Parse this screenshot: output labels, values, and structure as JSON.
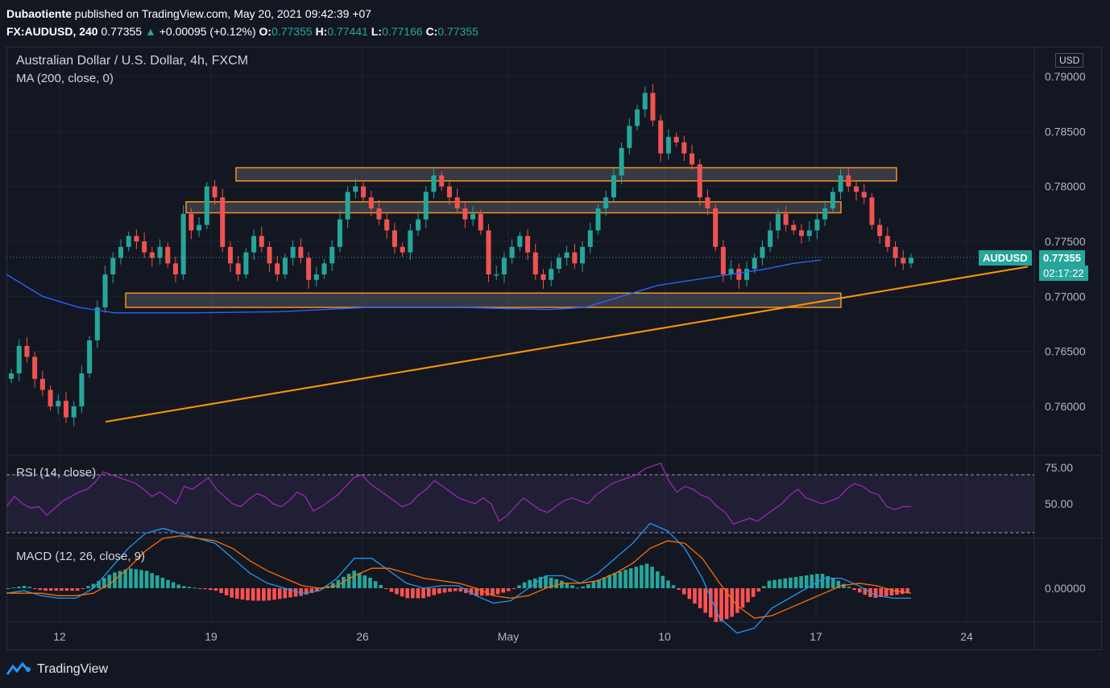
{
  "header": {
    "author": "Dubaotiente",
    "published": "published on TradingView.com, May 20, 2021 09:42:39 +07",
    "symbol_line": "FX:AUDUSD, 240",
    "last": "0.77355",
    "change": "+0.00095 (+0.12%)",
    "o_label": "O:",
    "o": "0.77355",
    "h_label": "H:",
    "h": "0.77441",
    "l_label": "L:",
    "l": "0.77166",
    "c_label": "C:",
    "c": "0.77355"
  },
  "legend": {
    "title": "Australian Dollar / U.S. Dollar, 4h, FXCM",
    "ma": "MA (200, close, 0)",
    "rsi": "RSI (14, close)",
    "macd": "MACD (12, 26, close, 9)"
  },
  "price_axis": {
    "currency": "USD",
    "labels": [
      "0.79000",
      "0.78500",
      "0.78000",
      "0.77500",
      "0.77000",
      "0.76500",
      "0.76000"
    ],
    "ticker_tag": "AUDUSD",
    "last_price": "0.77355",
    "countdown": "02:17:22"
  },
  "rsi_axis": {
    "labels": [
      "75.00",
      "50.00"
    ]
  },
  "macd_axis": {
    "labels": [
      "0.00000"
    ]
  },
  "time_axis": {
    "labels": [
      "12",
      "19",
      "26",
      "May",
      "10",
      "17",
      "24"
    ]
  },
  "footer": {
    "brand": "TradingView"
  },
  "colors": {
    "bg": "#131722",
    "up": "#26a69a",
    "down": "#ef5350",
    "ma": "#2962ff",
    "zone": "#f7931a",
    "trend": "#ff9800",
    "rsi": "#9c27b0",
    "macd": "#2196f3",
    "signal": "#ff6d00"
  },
  "chart_data": {
    "type": "candlestick",
    "title": "Australian Dollar / U.S. Dollar, 4h, FXCM",
    "ylim": [
      0.756,
      0.792
    ],
    "x_ticks": [
      "12",
      "19",
      "26",
      "May",
      "10",
      "17",
      "24"
    ],
    "close_path": [
      0.763,
      0.7655,
      0.7645,
      0.7625,
      0.7615,
      0.76,
      0.7605,
      0.759,
      0.76,
      0.763,
      0.766,
      0.769,
      0.772,
      0.7735,
      0.7745,
      0.7755,
      0.775,
      0.774,
      0.7735,
      0.7745,
      0.773,
      0.772,
      0.7775,
      0.776,
      0.7765,
      0.78,
      0.779,
      0.7745,
      0.773,
      0.772,
      0.774,
      0.7755,
      0.7745,
      0.773,
      0.772,
      0.7735,
      0.7745,
      0.7735,
      0.7715,
      0.772,
      0.773,
      0.7745,
      0.777,
      0.7795,
      0.78,
      0.779,
      0.778,
      0.777,
      0.776,
      0.7745,
      0.774,
      0.776,
      0.777,
      0.7795,
      0.781,
      0.78,
      0.779,
      0.778,
      0.777,
      0.7775,
      0.776,
      0.772,
      0.772,
      0.7735,
      0.7745,
      0.7755,
      0.774,
      0.772,
      0.7715,
      0.7725,
      0.7735,
      0.774,
      0.773,
      0.7745,
      0.776,
      0.778,
      0.779,
      0.781,
      0.7835,
      0.7855,
      0.787,
      0.7885,
      0.786,
      0.783,
      0.7845,
      0.784,
      0.783,
      0.782,
      0.779,
      0.778,
      0.7745,
      0.772,
      0.7725,
      0.7715,
      0.7725,
      0.7735,
      0.7745,
      0.776,
      0.7775,
      0.7765,
      0.776,
      0.7755,
      0.776,
      0.777,
      0.778,
      0.7795,
      0.781,
      0.78,
      0.7795,
      0.779,
      0.7765,
      0.7755,
      0.7745,
      0.7735,
      0.773,
      0.7735
    ],
    "ma200": [
      [
        0.0,
        0.772
      ],
      [
        0.04,
        0.77
      ],
      [
        0.08,
        0.769
      ],
      [
        0.12,
        0.7685
      ],
      [
        0.2,
        0.7685
      ],
      [
        0.3,
        0.7686
      ],
      [
        0.4,
        0.769
      ],
      [
        0.5,
        0.769
      ],
      [
        0.6,
        0.7688
      ],
      [
        0.64,
        0.769
      ],
      [
        0.68,
        0.77
      ],
      [
        0.72,
        0.771
      ],
      [
        0.76,
        0.7715
      ],
      [
        0.8,
        0.772
      ],
      [
        0.84,
        0.7725
      ],
      [
        0.87,
        0.773
      ],
      [
        0.9,
        0.7733
      ]
    ],
    "support_resistance_zones": [
      [
        0.7805,
        0.7817
      ],
      [
        0.7776,
        0.7786
      ],
      [
        0.769,
        0.7703
      ]
    ],
    "trendline": {
      "from": 0.7586,
      "to": 0.7727
    },
    "rsi": {
      "ylim": [
        30,
        80
      ],
      "upper": 70,
      "lower": 30,
      "values": [
        48,
        55,
        50,
        47,
        48,
        42,
        47,
        52,
        55,
        58,
        60,
        65,
        72,
        70,
        68,
        66,
        64,
        60,
        55,
        58,
        54,
        50,
        62,
        60,
        64,
        68,
        60,
        55,
        50,
        48,
        53,
        57,
        55,
        50,
        48,
        52,
        58,
        55,
        45,
        48,
        52,
        56,
        62,
        68,
        70,
        64,
        60,
        56,
        52,
        48,
        50,
        56,
        60,
        66,
        62,
        58,
        54,
        52,
        50,
        54,
        50,
        38,
        42,
        48,
        54,
        50,
        46,
        44,
        48,
        52,
        54,
        52,
        50,
        56,
        60,
        64,
        66,
        68,
        70,
        74,
        76,
        78,
        66,
        58,
        62,
        60,
        56,
        54,
        48,
        44,
        36,
        38,
        40,
        38,
        42,
        46,
        50,
        56,
        60,
        54,
        52,
        50,
        52,
        54,
        60,
        64,
        62,
        58,
        56,
        48,
        46,
        48,
        48
      ]
    },
    "macd": {
      "ylim": [
        -0.0022,
        0.0032
      ],
      "macd": [
        -0.0002,
        -0.0001,
        -0.0003,
        -0.0004,
        -0.0004,
        0.0,
        0.0008,
        0.0016,
        0.0022,
        0.0024,
        0.0022,
        0.002,
        0.0018,
        0.0012,
        0.0006,
        0.0002,
        0.0,
        -0.0002,
        -0.0001,
        0.0004,
        0.0012,
        0.0012,
        0.0007,
        0.0002,
        0.0,
        0.0001,
        0.0001,
        -0.0003,
        -0.0006,
        -0.0005,
        0.0,
        0.0005,
        0.0005,
        0.0002,
        0.0006,
        0.0012,
        0.0018,
        0.0026,
        0.0023,
        0.0016,
        0.0004,
        -0.0012,
        -0.0018,
        -0.0016,
        -0.0008,
        -0.0004,
        0.0,
        0.0004,
        0.0004,
        0.0001,
        -0.0003,
        -0.0004,
        -0.0004
      ],
      "signal": [
        -0.0002,
        -0.0002,
        -0.0002,
        -0.0003,
        -0.0003,
        -0.0002,
        0.0002,
        0.0008,
        0.0015,
        0.002,
        0.0021,
        0.002,
        0.0019,
        0.0016,
        0.0011,
        0.0007,
        0.0004,
        0.0001,
        0.0,
        0.0001,
        0.0005,
        0.0008,
        0.0008,
        0.0006,
        0.0004,
        0.0003,
        0.0002,
        0.0,
        -0.0003,
        -0.0004,
        -0.0003,
        0.0,
        0.0002,
        0.0002,
        0.0003,
        0.0006,
        0.001,
        0.0016,
        0.0019,
        0.0018,
        0.0012,
        0.0002,
        -0.0007,
        -0.0012,
        -0.0011,
        -0.0008,
        -0.0005,
        -0.0002,
        0.0001,
        0.0002,
        0.0001,
        -0.0001,
        -0.0002
      ]
    }
  }
}
